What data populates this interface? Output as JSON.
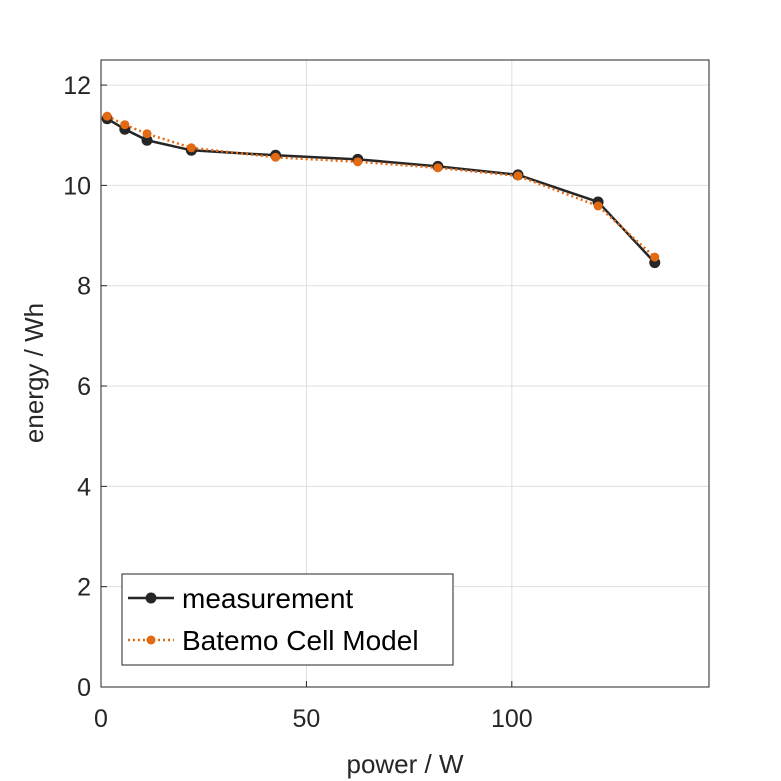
{
  "chart_data": {
    "type": "line",
    "title": "",
    "xlabel": "power / W",
    "ylabel": "energy / Wh",
    "xlim": [
      0,
      148
    ],
    "ylim": [
      0,
      12.5
    ],
    "xticks": [
      0,
      50,
      100
    ],
    "yticks": [
      0,
      2,
      4,
      6,
      8,
      10,
      12
    ],
    "xtick_labels": [
      "0",
      "50",
      "100"
    ],
    "ytick_labels": [
      "0",
      "2",
      "4",
      "6",
      "8",
      "10",
      "12"
    ],
    "grid": true,
    "legend_position": "bottom-left",
    "series": [
      {
        "name": "measurement",
        "color": "#262626",
        "line_style": "solid",
        "marker": "circle",
        "x": [
          1.5,
          5.8,
          11.2,
          22.0,
          42.5,
          62.5,
          82.0,
          101.5,
          121.0,
          134.8
        ],
        "y": [
          11.33,
          11.12,
          10.9,
          10.7,
          10.6,
          10.52,
          10.38,
          10.21,
          9.67,
          8.46
        ]
      },
      {
        "name": "Batemo Cell Model",
        "color": "#e36a12",
        "line_style": "dotted",
        "marker": "circle",
        "x": [
          1.5,
          5.8,
          11.2,
          22.0,
          42.5,
          62.5,
          82.0,
          101.5,
          121.0,
          134.8
        ],
        "y": [
          11.38,
          11.21,
          11.03,
          10.75,
          10.56,
          10.47,
          10.35,
          10.19,
          9.59,
          8.57
        ]
      }
    ]
  }
}
